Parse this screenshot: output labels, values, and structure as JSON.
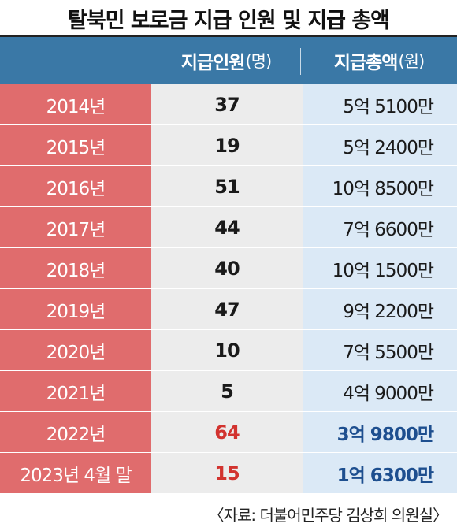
{
  "title": "탈북민 보로금 지급 인원 및 지급 총액",
  "header": {
    "col1_label": "지급인원",
    "col1_unit": "(명)",
    "col2_label": "지급총액",
    "col2_unit": "(원)"
  },
  "colors": {
    "header_bg": "#3a78a6",
    "year_col_bg": "#e06c6d",
    "count_col_bg": "#ececec",
    "amount_col_bg": "#dbe9f6",
    "highlight_count": "#d2332f",
    "highlight_amount": "#1e4f8f",
    "normal_text": "#1a1a1a"
  },
  "chart_data": {
    "type": "table",
    "title": "탈북민 보로금 지급 인원 및 지급 총액",
    "columns": [
      "",
      "지급인원(명)",
      "지급총액(원)"
    ],
    "rows": [
      {
        "year": "2014년",
        "count": "37",
        "amount": "5억 5100만",
        "highlight": false
      },
      {
        "year": "2015년",
        "count": "19",
        "amount": "5억 2400만",
        "highlight": false
      },
      {
        "year": "2016년",
        "count": "51",
        "amount": "10억 8500만",
        "highlight": false
      },
      {
        "year": "2017년",
        "count": "44",
        "amount": "7억 6600만",
        "highlight": false
      },
      {
        "year": "2018년",
        "count": "40",
        "amount": "10억 1500만",
        "highlight": false
      },
      {
        "year": "2019년",
        "count": "47",
        "amount": "9억 2200만",
        "highlight": false
      },
      {
        "year": "2020년",
        "count": "10",
        "amount": "7억 5500만",
        "highlight": false
      },
      {
        "year": "2021년",
        "count": "5",
        "amount": "4억 9000만",
        "highlight": false
      },
      {
        "year": "2022년",
        "count": "64",
        "amount": "3억 9800만",
        "highlight": true
      },
      {
        "year": "2023년 4월 말",
        "count": "15",
        "amount": "1억 6300만",
        "highlight": true
      }
    ]
  },
  "source": "〈자료: 더불어민주당 김상희 의원실〉"
}
